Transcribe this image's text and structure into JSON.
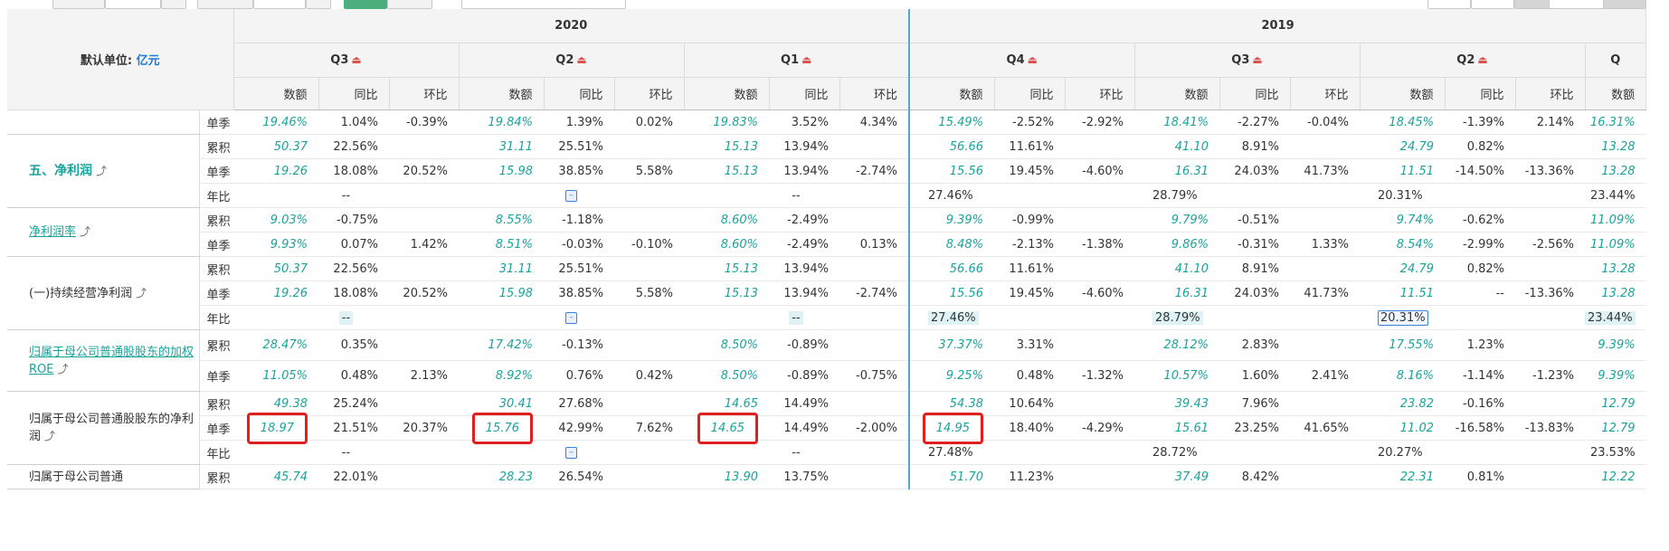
{
  "unit_label": "默认单位:",
  "unit_value": "亿元",
  "years": [
    {
      "label": "2020",
      "quarters": [
        "Q3",
        "Q2",
        "Q1"
      ]
    },
    {
      "label": "2019",
      "quarters": [
        "Q4",
        "Q3",
        "Q2"
      ]
    }
  ],
  "extra_quarter": "Q",
  "subcols": [
    "数额",
    "同比",
    "环比"
  ],
  "rows": [
    {
      "type": "单季",
      "cells": [
        [
          "19.46%",
          "1.04%",
          "-0.39%"
        ],
        [
          "19.84%",
          "1.39%",
          "0.02%"
        ],
        [
          "19.83%",
          "3.52%",
          "4.34%"
        ],
        [
          "15.49%",
          "-2.52%",
          "-2.92%"
        ],
        [
          "18.41%",
          "-2.27%",
          "-0.04%"
        ],
        [
          "18.45%",
          "-1.39%",
          "2.14%"
        ],
        [
          "16.31%"
        ]
      ]
    },
    {
      "type": "累积",
      "cells": [
        [
          "50.37",
          "22.56%",
          ""
        ],
        [
          "31.11",
          "25.51%",
          ""
        ],
        [
          "15.13",
          "13.94%",
          ""
        ],
        [
          "56.66",
          "11.61%",
          ""
        ],
        [
          "41.10",
          "8.91%",
          ""
        ],
        [
          "24.79",
          "0.82%",
          ""
        ],
        [
          "13.28"
        ]
      ]
    },
    {
      "type": "单季",
      "cells": [
        [
          "19.26",
          "18.08%",
          "20.52%"
        ],
        [
          "15.98",
          "38.85%",
          "5.58%"
        ],
        [
          "15.13",
          "13.94%",
          "-2.74%"
        ],
        [
          "15.56",
          "19.45%",
          "-4.60%"
        ],
        [
          "16.31",
          "24.03%",
          "41.73%"
        ],
        [
          "11.51",
          "-14.50%",
          "-13.36%"
        ],
        [
          "13.28"
        ]
      ]
    },
    {
      "type": "年比",
      "cells": [
        [
          "--"
        ],
        [
          ""
        ],
        [
          "--"
        ],
        [
          "27.46%"
        ],
        [
          "28.79%"
        ],
        [
          "20.31%"
        ],
        [
          "23.44%"
        ]
      ]
    },
    {
      "type": "累积",
      "cells": [
        [
          "9.03%",
          "-0.75%",
          ""
        ],
        [
          "8.55%",
          "-1.18%",
          ""
        ],
        [
          "8.60%",
          "-2.49%",
          ""
        ],
        [
          "9.39%",
          "-0.99%",
          ""
        ],
        [
          "9.79%",
          "-0.51%",
          ""
        ],
        [
          "9.74%",
          "-0.62%",
          ""
        ],
        [
          "11.09%"
        ]
      ]
    },
    {
      "type": "单季",
      "cells": [
        [
          "9.93%",
          "0.07%",
          "1.42%"
        ],
        [
          "8.51%",
          "-0.03%",
          "-0.10%"
        ],
        [
          "8.60%",
          "-2.49%",
          "0.13%"
        ],
        [
          "8.48%",
          "-2.13%",
          "-1.38%"
        ],
        [
          "9.86%",
          "-0.31%",
          "1.33%"
        ],
        [
          "8.54%",
          "-2.99%",
          "-2.56%"
        ],
        [
          "11.09%"
        ]
      ]
    },
    {
      "type": "累积",
      "cells": [
        [
          "50.37",
          "22.56%",
          ""
        ],
        [
          "31.11",
          "25.51%",
          ""
        ],
        [
          "15.13",
          "13.94%",
          ""
        ],
        [
          "56.66",
          "11.61%",
          ""
        ],
        [
          "41.10",
          "8.91%",
          ""
        ],
        [
          "24.79",
          "0.82%",
          ""
        ],
        [
          "13.28"
        ]
      ]
    },
    {
      "type": "单季",
      "cells": [
        [
          "19.26",
          "18.08%",
          "20.52%"
        ],
        [
          "15.98",
          "38.85%",
          "5.58%"
        ],
        [
          "15.13",
          "13.94%",
          "-2.74%"
        ],
        [
          "15.56",
          "19.45%",
          "-4.60%"
        ],
        [
          "16.31",
          "24.03%",
          "41.73%"
        ],
        [
          "11.51",
          "--",
          "-13.36%"
        ],
        [
          "13.28"
        ]
      ]
    },
    {
      "type": "年比",
      "cells": [
        [
          "--"
        ],
        [
          ""
        ],
        [
          "--"
        ],
        [
          "27.46%"
        ],
        [
          "28.79%"
        ],
        [
          "20.31%"
        ],
        [
          "23.44%"
        ]
      ]
    },
    {
      "type": "累积",
      "cells": [
        [
          "28.47%",
          "0.35%",
          ""
        ],
        [
          "17.42%",
          "-0.13%",
          ""
        ],
        [
          "8.50%",
          "-0.89%",
          ""
        ],
        [
          "37.37%",
          "3.31%",
          ""
        ],
        [
          "28.12%",
          "2.83%",
          ""
        ],
        [
          "17.55%",
          "1.23%",
          ""
        ],
        [
          "9.39%"
        ]
      ]
    },
    {
      "type": "单季",
      "cells": [
        [
          "11.05%",
          "0.48%",
          "2.13%"
        ],
        [
          "8.92%",
          "0.76%",
          "0.42%"
        ],
        [
          "8.50%",
          "-0.89%",
          "-0.75%"
        ],
        [
          "9.25%",
          "0.48%",
          "-1.32%"
        ],
        [
          "10.57%",
          "1.60%",
          "2.41%"
        ],
        [
          "8.16%",
          "-1.14%",
          "-1.23%"
        ],
        [
          "9.39%"
        ]
      ]
    },
    {
      "type": "累积",
      "cells": [
        [
          "49.38",
          "25.24%",
          ""
        ],
        [
          "30.41",
          "27.68%",
          ""
        ],
        [
          "14.65",
          "14.49%",
          ""
        ],
        [
          "54.38",
          "10.64%",
          ""
        ],
        [
          "39.43",
          "7.96%",
          ""
        ],
        [
          "23.82",
          "-0.16%",
          ""
        ],
        [
          "12.79"
        ]
      ]
    },
    {
      "type": "单季",
      "cells": [
        [
          "18.97",
          "21.51%",
          "20.37%"
        ],
        [
          "15.76",
          "42.99%",
          "7.62%"
        ],
        [
          "14.65",
          "14.49%",
          "-2.00%"
        ],
        [
          "14.95",
          "18.40%",
          "-4.29%"
        ],
        [
          "15.61",
          "23.25%",
          "41.65%"
        ],
        [
          "11.02",
          "-16.58%",
          "-13.83%"
        ],
        [
          "12.79"
        ]
      ]
    },
    {
      "type": "年比",
      "cells": [
        [
          "--"
        ],
        [
          ""
        ],
        [
          "--"
        ],
        [
          "27.48%"
        ],
        [
          "28.72%"
        ],
        [
          "20.27%"
        ],
        [
          "23.53%"
        ]
      ]
    },
    {
      "type": "累积",
      "cells": [
        [
          "45.74",
          "22.01%",
          ""
        ],
        [
          "28.23",
          "26.54%",
          ""
        ],
        [
          "13.90",
          "13.75%",
          ""
        ],
        [
          "51.70",
          "11.23%",
          ""
        ],
        [
          "37.49",
          "8.42%",
          ""
        ],
        [
          "22.31",
          "0.81%",
          ""
        ],
        [
          "12.22"
        ]
      ]
    }
  ],
  "metrics": {
    "net_profit": "五、净利润",
    "net_margin": "净利润率",
    "continuing": "(一)持续经营净利润",
    "roe": "归属于母公司普通股股东的加权ROE",
    "parent_np": "归属于母公司普通股股东的净利润",
    "parent_np_deduct": "归属于母公司普通"
  },
  "icons": {
    "pdf": "pdf-icon",
    "chart": "line-chart-icon",
    "expand": "expand-icon"
  }
}
